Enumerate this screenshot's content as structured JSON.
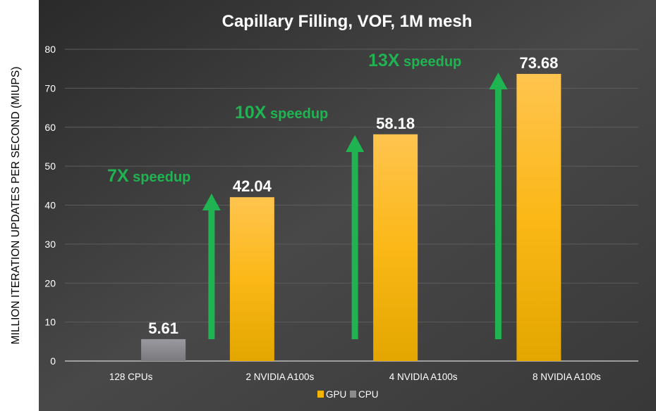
{
  "chart_data": {
    "type": "bar",
    "title": "Capillary Filling, VOF, 1M mesh",
    "xlabel": "",
    "ylabel": "MILLION ITERATION UPDATES PER SECOND (MIUPS)",
    "ylim": [
      0,
      80
    ],
    "yticks": [
      0,
      10,
      20,
      30,
      40,
      50,
      60,
      70,
      80
    ],
    "grid": true,
    "legend": "bottom",
    "categories": [
      "128 CPUs",
      "2 NVIDIA A100s",
      "4 NVIDIA A100s",
      "8 NVIDIA A100s"
    ],
    "series": [
      {
        "name": "GPU",
        "color": "#f5b400",
        "values": [
          null,
          42.04,
          58.18,
          73.68
        ],
        "labels": [
          "",
          "42.04",
          "58.18",
          "73.68"
        ]
      },
      {
        "name": "CPU",
        "color": "#8c8c8c",
        "values": [
          5.61,
          null,
          null,
          null
        ],
        "labels": [
          "5.61",
          "",
          "",
          ""
        ]
      }
    ],
    "annotations": [
      {
        "category": "2 NVIDIA A100s",
        "text": "7X speedup"
      },
      {
        "category": "4 NVIDIA A100s",
        "text": "10X speedup"
      },
      {
        "category": "8 NVIDIA A100s",
        "text": "13X speedup"
      }
    ],
    "annotation_color": "#1fb451",
    "background": "#3c3c3c"
  }
}
